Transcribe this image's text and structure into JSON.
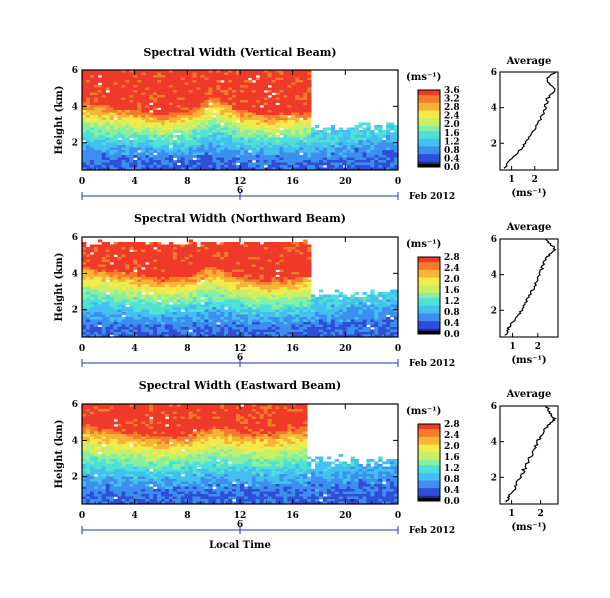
{
  "figure": {
    "xlabel": "Local Time",
    "colorbar_unit_label": "(ms⁻¹)",
    "date_label": "Feb 2012",
    "date_marker_label": "6",
    "average_title": "Average",
    "average_unit_label": "(ms⁻¹)"
  },
  "chart_data": [
    {
      "type": "heatmap",
      "title": "Spectral Width (Vertical Beam)",
      "ylabel": "Height (km)",
      "xlabel": "Local Time",
      "x_ticks": [
        "0",
        "4",
        "8",
        "12",
        "16",
        "20",
        "0"
      ],
      "y_ticks": [
        "2",
        "4",
        "6"
      ],
      "xlim": [
        0,
        24
      ],
      "ylim": [
        0.5,
        6.0
      ],
      "colorbar": {
        "label": "(ms⁻¹)",
        "ticks": [
          "0.0",
          "0.4",
          "0.8",
          "1.2",
          "1.6",
          "2.0",
          "2.4",
          "2.8",
          "3.2",
          "3.6"
        ],
        "range": [
          0,
          3.6
        ]
      },
      "structure": {
        "red_top_km": 6.0,
        "red_bottom_km": [
          4.2,
          4.0,
          3.8,
          3.6,
          3.7,
          4.6,
          3.8,
          3.5,
          3.6,
          3.8,
          4.2,
          4.6,
          5.0
        ],
        "max_value": 3.6,
        "night_cutoff_hour": 17.5
      },
      "profile": {
        "title": "Average",
        "xlabel": "(ms⁻¹)",
        "x_ticks": [
          "1",
          "2"
        ],
        "xlim": [
          0.5,
          3.0
        ],
        "y_ticks": [
          "2",
          "4",
          "6"
        ],
        "ylim": [
          0.5,
          6.0
        ],
        "height_km": [
          0.6,
          1.0,
          1.5,
          2.0,
          2.5,
          3.0,
          3.5,
          4.0,
          4.5,
          5.0,
          5.3,
          5.6,
          6.0
        ],
        "value": [
          0.7,
          0.9,
          1.3,
          1.6,
          1.8,
          2.1,
          2.3,
          2.45,
          2.55,
          2.85,
          2.7,
          2.5,
          2.9
        ]
      }
    },
    {
      "type": "heatmap",
      "title": "Spectral Width (Northward Beam)",
      "ylabel": "Height (km)",
      "xlabel": "Local Time",
      "x_ticks": [
        "0",
        "4",
        "8",
        "12",
        "16",
        "20",
        "0"
      ],
      "y_ticks": [
        "2",
        "4",
        "6"
      ],
      "xlim": [
        0,
        24
      ],
      "ylim": [
        0.5,
        6.0
      ],
      "colorbar": {
        "label": "(ms⁻¹)",
        "ticks": [
          "0.0",
          "0.4",
          "0.8",
          "1.2",
          "1.6",
          "2.0",
          "2.4",
          "2.8"
        ],
        "range": [
          0,
          2.8
        ]
      },
      "structure": {
        "red_top_km": 5.6,
        "red_bottom_km": [
          4.4,
          4.2,
          4.0,
          3.7,
          3.8,
          4.4,
          3.8,
          3.6,
          3.7,
          4.0,
          4.6,
          5.0,
          5.4
        ],
        "max_value": 2.8,
        "night_cutoff_hour": 17.5
      },
      "profile": {
        "title": "Average",
        "xlabel": "(ms⁻¹)",
        "x_ticks": [
          "1",
          "2"
        ],
        "xlim": [
          0.5,
          2.8
        ],
        "y_ticks": [
          "2",
          "4",
          "6"
        ],
        "ylim": [
          0.5,
          6.0
        ],
        "height_km": [
          0.6,
          1.0,
          1.5,
          2.0,
          2.5,
          3.0,
          3.5,
          4.0,
          4.5,
          5.0,
          5.4,
          5.7,
          6.0
        ],
        "value": [
          0.7,
          0.85,
          1.1,
          1.35,
          1.55,
          1.75,
          1.9,
          2.05,
          2.2,
          2.35,
          2.7,
          2.5,
          2.3
        ]
      }
    },
    {
      "type": "heatmap",
      "title": "Spectral Width (Eastward Beam)",
      "ylabel": "Height (km)",
      "xlabel": "Local Time",
      "x_ticks": [
        "0",
        "4",
        "8",
        "12",
        "16",
        "20",
        "0"
      ],
      "y_ticks": [
        "2",
        "4",
        "6"
      ],
      "xlim": [
        0,
        24
      ],
      "ylim": [
        0.5,
        6.0
      ],
      "colorbar": {
        "label": "(ms⁻¹)",
        "ticks": [
          "0.0",
          "0.4",
          "0.8",
          "1.2",
          "1.6",
          "2.0",
          "2.4",
          "2.8"
        ],
        "range": [
          0,
          2.8
        ]
      },
      "structure": {
        "red_top_km": 6.0,
        "red_bottom_km": [
          4.8,
          4.6,
          4.4,
          4.2,
          4.3,
          4.8,
          4.5,
          4.4,
          4.6,
          5.0,
          5.5,
          5.8,
          6.0
        ],
        "max_value": 2.8,
        "night_cutoff_hour": 17.0
      },
      "profile": {
        "title": "Average",
        "xlabel": "(ms⁻¹)",
        "x_ticks": [
          "1",
          "2"
        ],
        "xlim": [
          0.6,
          2.6
        ],
        "y_ticks": [
          "2",
          "4",
          "6"
        ],
        "ylim": [
          0.5,
          6.0
        ],
        "height_km": [
          0.6,
          1.0,
          1.5,
          2.0,
          2.5,
          3.0,
          3.5,
          4.0,
          4.5,
          5.0,
          5.3,
          5.6,
          6.0
        ],
        "value": [
          0.8,
          0.95,
          1.15,
          1.3,
          1.45,
          1.6,
          1.75,
          1.9,
          2.05,
          2.3,
          2.5,
          2.3,
          2.2
        ]
      }
    }
  ],
  "colors": {
    "colormap": [
      "#1c2a8a",
      "#2f4ed8",
      "#3c8fee",
      "#43c0f0",
      "#4fe0d6",
      "#88eea2",
      "#c7f06a",
      "#f4ea4a",
      "#f7b335",
      "#f47a2c",
      "#ef3a2a"
    ],
    "date_axis": "#2233bb",
    "missing": "#ffffff"
  }
}
